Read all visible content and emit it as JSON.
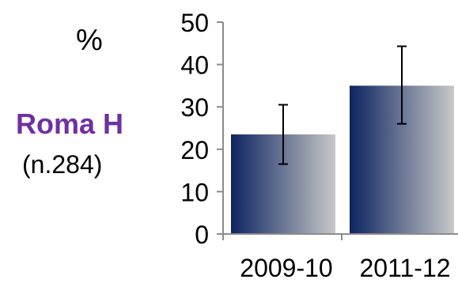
{
  "chart_data": {
    "type": "bar",
    "title": "",
    "xlabel": "",
    "ylabel": "%",
    "categories": [
      "2009-10",
      "2011-12"
    ],
    "series": [
      {
        "name": "Roma H",
        "note": "(n.284)",
        "values": [
          23.5,
          35
        ],
        "error_low": [
          16.5,
          26
        ],
        "error_high": [
          30.5,
          44.3
        ]
      }
    ],
    "ylim": [
      0,
      50
    ],
    "yticks": [
      0,
      10,
      20,
      30,
      40,
      50
    ],
    "grid": false,
    "colors": {
      "bar_dark": "#0d2461",
      "bar_light": "#c8c8c8",
      "series_label": "#7030a0"
    }
  }
}
